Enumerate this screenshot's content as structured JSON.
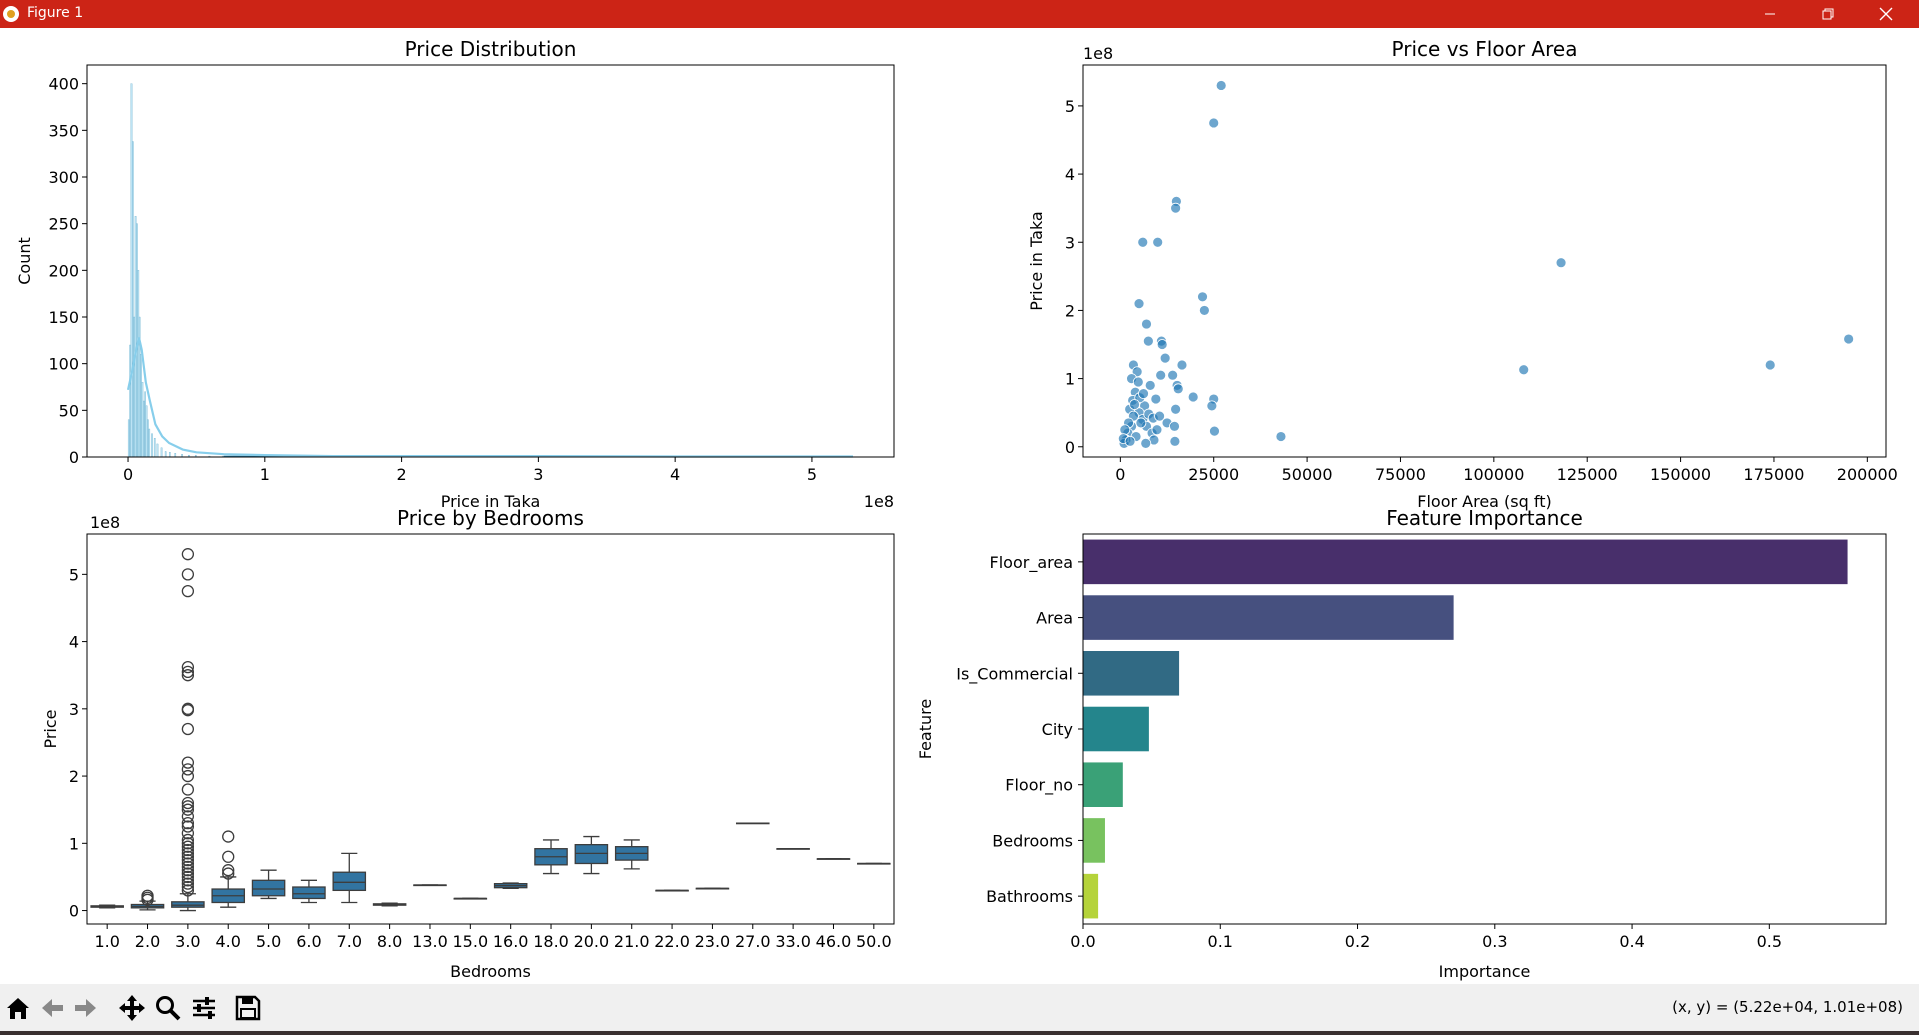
{
  "window": {
    "title": "Figure 1"
  },
  "toolbar": {
    "buttons": [
      "home-icon",
      "back-icon",
      "forward-icon",
      "pan-icon",
      "zoom-icon",
      "configure-icon",
      "save-icon"
    ],
    "status": "(x, y) = (5.22e+04, 1.01e+08)"
  },
  "chart_data": [
    {
      "type": "histogram",
      "title": "Price Distribution",
      "xlabel": "Price in Taka",
      "ylabel": "Count",
      "x_offset_label": "1e8",
      "xlim": [
        -0.3,
        5.6
      ],
      "ylim": [
        0,
        420
      ],
      "xticks": [
        0,
        1,
        2,
        3,
        4,
        5
      ],
      "yticks": [
        0,
        50,
        100,
        150,
        200,
        250,
        300,
        350,
        400
      ],
      "bins_x": [
        0.01,
        0.02,
        0.03,
        0.04,
        0.05,
        0.06,
        0.07,
        0.08,
        0.09,
        0.1,
        0.11,
        0.12,
        0.13,
        0.14,
        0.15,
        0.16,
        0.18,
        0.2,
        0.22,
        0.25,
        0.28,
        0.31,
        0.35,
        0.4,
        0.45,
        0.5,
        0.6,
        0.7
      ],
      "bins_count": [
        40,
        120,
        400,
        338,
        150,
        258,
        250,
        200,
        150,
        110,
        80,
        60,
        70,
        55,
        40,
        30,
        25,
        20,
        14,
        10,
        6,
        5,
        4,
        3,
        2,
        2,
        1,
        1
      ],
      "kde_x": [
        0,
        0.03,
        0.06,
        0.08,
        0.1,
        0.13,
        0.16,
        0.2,
        0.25,
        0.3,
        0.4,
        0.5,
        0.7,
        1.0,
        1.5,
        2,
        3,
        4,
        5,
        5.3
      ],
      "kde_y": [
        72,
        92,
        115,
        128,
        115,
        80,
        60,
        35,
        22,
        15,
        8,
        5,
        3,
        2,
        1,
        1,
        1,
        0.5,
        0.5,
        0.5
      ],
      "color": "#87ceeb"
    },
    {
      "type": "scatter",
      "title": "Price vs Floor Area",
      "xlabel": "Floor Area (sq ft)",
      "ylabel": "Price in Taka",
      "y_offset_label": "1e8",
      "xlim": [
        -10000,
        205000
      ],
      "ylim": [
        -0.15,
        5.6
      ],
      "xticks": [
        0,
        25000,
        50000,
        75000,
        100000,
        125000,
        150000,
        175000,
        200000
      ],
      "yticks": [
        0,
        1,
        2,
        3,
        4,
        5
      ],
      "points": [
        [
          27000,
          5.3
        ],
        [
          25000,
          4.75
        ],
        [
          15000,
          3.6
        ],
        [
          14800,
          3.5
        ],
        [
          6000,
          3.0
        ],
        [
          10000,
          3.0
        ],
        [
          22000,
          2.2
        ],
        [
          5000,
          2.1
        ],
        [
          22500,
          2.0
        ],
        [
          7000,
          1.8
        ],
        [
          118000,
          2.7
        ],
        [
          195000,
          1.58
        ],
        [
          174000,
          1.2
        ],
        [
          108000,
          1.13
        ],
        [
          43000,
          0.15
        ],
        [
          7500,
          1.55
        ],
        [
          11000,
          1.55
        ],
        [
          11200,
          1.5
        ],
        [
          16500,
          1.2
        ],
        [
          12000,
          1.3
        ],
        [
          3500,
          1.2
        ],
        [
          4500,
          1.1
        ],
        [
          10800,
          1.05
        ],
        [
          14000,
          1.05
        ],
        [
          15200,
          0.9
        ],
        [
          15500,
          0.85
        ],
        [
          3000,
          1.0
        ],
        [
          19500,
          0.73
        ],
        [
          25000,
          0.7
        ],
        [
          24500,
          0.6
        ],
        [
          14800,
          0.55
        ],
        [
          25200,
          0.23
        ],
        [
          14600,
          0.08
        ],
        [
          8000,
          0.9
        ],
        [
          9500,
          0.7
        ],
        [
          6500,
          0.6
        ],
        [
          5000,
          0.5
        ],
        [
          3000,
          0.3
        ],
        [
          2000,
          0.2
        ],
        [
          1500,
          0.1
        ],
        [
          1000,
          0.05
        ],
        [
          4000,
          0.8
        ],
        [
          6000,
          0.4
        ],
        [
          7000,
          0.3
        ],
        [
          8500,
          0.2
        ],
        [
          9000,
          0.1
        ],
        [
          2500,
          0.55
        ],
        [
          3500,
          0.45
        ],
        [
          5500,
          0.35
        ],
        [
          4200,
          0.15
        ],
        [
          6800,
          0.05
        ],
        [
          2200,
          0.35
        ],
        [
          1200,
          0.25
        ],
        [
          800,
          0.12
        ],
        [
          3300,
          0.68
        ],
        [
          5200,
          0.72
        ],
        [
          7600,
          0.48
        ],
        [
          4800,
          0.95
        ],
        [
          6200,
          0.78
        ],
        [
          8800,
          0.42
        ],
        [
          10500,
          0.45
        ],
        [
          9800,
          0.25
        ],
        [
          12500,
          0.35
        ],
        [
          14500,
          0.3
        ],
        [
          3800,
          0.62
        ],
        [
          2600,
          0.08
        ]
      ],
      "color": "#1f77b4"
    },
    {
      "type": "box",
      "title": "Price by Bedrooms",
      "xlabel": "Bedrooms",
      "ylabel": "Price",
      "y_offset_label": "1e8",
      "ylim": [
        -0.2,
        5.6
      ],
      "yticks": [
        0,
        1,
        2,
        3,
        4,
        5
      ],
      "categories": [
        "1.0",
        "2.0",
        "3.0",
        "4.0",
        "5.0",
        "6.0",
        "7.0",
        "8.0",
        "13.0",
        "15.0",
        "16.0",
        "18.0",
        "20.0",
        "21.0",
        "22.0",
        "23.0",
        "27.0",
        "33.0",
        "46.0",
        "50.0"
      ],
      "boxes": [
        {
          "q1": 0.05,
          "median": 0.06,
          "q3": 0.07,
          "low": 0.04,
          "high": 0.08
        },
        {
          "q1": 0.04,
          "median": 0.06,
          "q3": 0.09,
          "low": 0.01,
          "high": 0.14,
          "outliers": [
            0.16,
            0.19,
            0.22
          ]
        },
        {
          "q1": 0.05,
          "median": 0.08,
          "q3": 0.13,
          "low": 0.0,
          "high": 0.25,
          "outliers": [
            5.3,
            5.0,
            4.75,
            3.62,
            3.55,
            3.5,
            3.0,
            2.98,
            2.7,
            2.2,
            2.1,
            2.0,
            1.8,
            1.6,
            1.55,
            1.5,
            1.4,
            1.3,
            1.25,
            1.15,
            1.05,
            1.0,
            0.95,
            0.9,
            0.85,
            0.8,
            0.75,
            0.7,
            0.65,
            0.6,
            0.55,
            0.5,
            0.45,
            0.4,
            0.35,
            0.3
          ]
        },
        {
          "q1": 0.12,
          "median": 0.22,
          "q3": 0.32,
          "low": 0.05,
          "high": 0.5,
          "outliers": [
            1.1,
            0.8,
            0.6,
            0.55
          ]
        },
        {
          "q1": 0.22,
          "median": 0.32,
          "q3": 0.45,
          "low": 0.18,
          "high": 0.6
        },
        {
          "q1": 0.18,
          "median": 0.25,
          "q3": 0.35,
          "low": 0.12,
          "high": 0.45
        },
        {
          "q1": 0.3,
          "median": 0.42,
          "q3": 0.57,
          "low": 0.12,
          "high": 0.85
        },
        {
          "q1": 0.08,
          "median": 0.09,
          "q3": 0.1,
          "low": 0.07,
          "high": 0.11
        },
        {
          "q1": 0.38,
          "median": 0.38,
          "q3": 0.38,
          "low": 0.38,
          "high": 0.38
        },
        {
          "q1": 0.18,
          "median": 0.18,
          "q3": 0.18,
          "low": 0.18,
          "high": 0.18
        },
        {
          "q1": 0.34,
          "median": 0.37,
          "q3": 0.4,
          "low": 0.33,
          "high": 0.41
        },
        {
          "q1": 0.68,
          "median": 0.8,
          "q3": 0.92,
          "low": 0.55,
          "high": 1.05
        },
        {
          "q1": 0.7,
          "median": 0.85,
          "q3": 0.98,
          "low": 0.55,
          "high": 1.1
        },
        {
          "q1": 0.75,
          "median": 0.85,
          "q3": 0.95,
          "low": 0.62,
          "high": 1.05
        },
        {
          "q1": 0.3,
          "median": 0.3,
          "q3": 0.3,
          "low": 0.3,
          "high": 0.3
        },
        {
          "q1": 0.33,
          "median": 0.33,
          "q3": 0.33,
          "low": 0.33,
          "high": 0.33
        },
        {
          "q1": 1.3,
          "median": 1.3,
          "q3": 1.3,
          "low": 1.3,
          "high": 1.3
        },
        {
          "q1": 0.92,
          "median": 0.92,
          "q3": 0.92,
          "low": 0.92,
          "high": 0.92
        },
        {
          "q1": 0.77,
          "median": 0.77,
          "q3": 0.77,
          "low": 0.77,
          "high": 0.77
        },
        {
          "q1": 0.7,
          "median": 0.7,
          "q3": 0.7,
          "low": 0.7,
          "high": 0.7
        }
      ],
      "color": "#3274a1"
    },
    {
      "type": "bar",
      "orientation": "horizontal",
      "title": "Feature Importance",
      "xlabel": "Importance",
      "ylabel": "Feature",
      "xlim": [
        0,
        0.585
      ],
      "xticks": [
        0.0,
        0.1,
        0.2,
        0.3,
        0.4,
        0.5
      ],
      "xtick_labels": [
        "0.0",
        "0.1",
        "0.2",
        "0.3",
        "0.4",
        "0.5"
      ],
      "categories": [
        "Floor_area",
        "Area",
        "Is_Commercial",
        "City",
        "Floor_no",
        "Bedrooms",
        "Bathrooms"
      ],
      "values": [
        0.557,
        0.27,
        0.07,
        0.048,
        0.029,
        0.016,
        0.011
      ],
      "colors": [
        "#482f6b",
        "#46507f",
        "#316a84",
        "#24858c",
        "#3aa177",
        "#78c25f",
        "#b5d33a"
      ]
    }
  ]
}
